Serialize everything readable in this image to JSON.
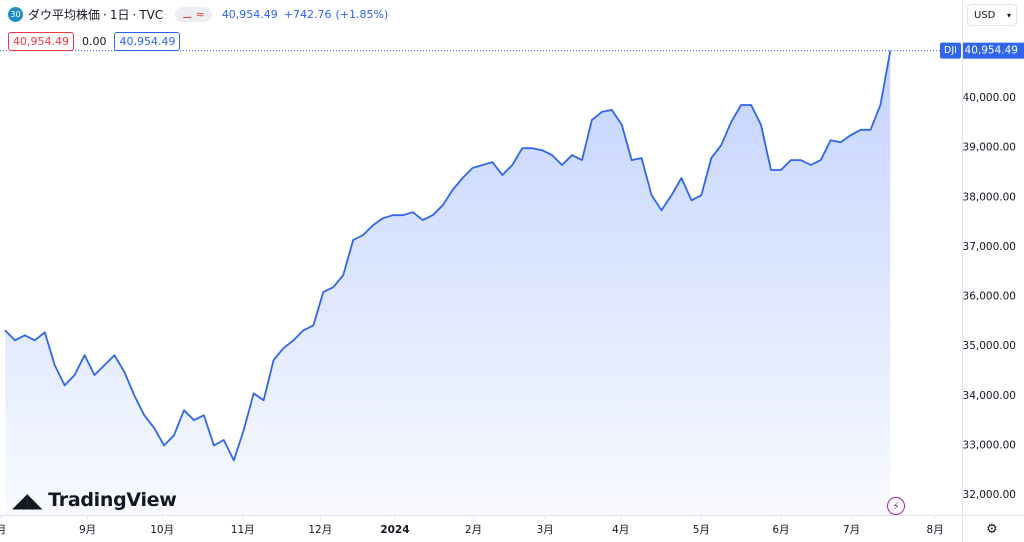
{
  "header": {
    "symbol_badge": "30",
    "name": "ダウ平均株価",
    "interval": "1日",
    "source": "TVC",
    "price": "40,954.49",
    "change": "+742.76",
    "change_pct": "(+1.85%)",
    "sell": "40,954.49",
    "spread": "0.00",
    "buy": "40,954.49",
    "currency": "USD",
    "logo": "TradingView"
  },
  "chart_data": {
    "type": "area",
    "color": "#2f66ea",
    "values": [
      35320,
      35120,
      35220,
      35120,
      35280,
      34620,
      34210,
      34420,
      34820,
      34420,
      34620,
      34820,
      34480,
      34010,
      33610,
      33350,
      33000,
      33210,
      33710,
      33510,
      33610,
      33000,
      33110,
      32700,
      33310,
      34050,
      33910,
      34720,
      34960,
      35120,
      35320,
      35420,
      36090,
      36190,
      36430,
      37140,
      37240,
      37440,
      37580,
      37640,
      37640,
      37700,
      37540,
      37640,
      37840,
      38150,
      38390,
      38590,
      38650,
      38710,
      38450,
      38650,
      38990,
      38990,
      38950,
      38850,
      38650,
      38850,
      38750,
      39560,
      39720,
      39760,
      39460,
      38750,
      38790,
      38040,
      37740,
      38040,
      38390,
      37940,
      38040,
      38790,
      39050,
      39520,
      39860,
      39860,
      39460,
      38550,
      38550,
      38750,
      38750,
      38650,
      38750,
      39150,
      39110,
      39250,
      39360,
      39360,
      39860,
      40954.49
    ],
    "symbol_label": "DJI",
    "last_price_label": "40,954.49",
    "xlim": [
      -0.5,
      95.7
    ],
    "xticks": [
      {
        "value": -0.4,
        "label": "月"
      },
      {
        "value": 8.3,
        "label": "9月"
      },
      {
        "value": 15.8,
        "label": "10月"
      },
      {
        "value": 23.9,
        "label": "11月"
      },
      {
        "value": 31.7,
        "label": "12月"
      },
      {
        "value": 39.2,
        "label": "2024"
      },
      {
        "value": 47.1,
        "label": "2月"
      },
      {
        "value": 54.3,
        "label": "3月"
      },
      {
        "value": 61.9,
        "label": "4月"
      },
      {
        "value": 70,
        "label": "5月"
      },
      {
        "value": 78,
        "label": "6月"
      },
      {
        "value": 85.1,
        "label": "7月"
      },
      {
        "value": 93.5,
        "label": "8月"
      }
    ],
    "ylim": [
      31600,
      41975
    ],
    "yticks": [
      {
        "value": 32000,
        "label": "32,000.00"
      },
      {
        "value": 33000,
        "label": "33,000.00"
      },
      {
        "value": 34000,
        "label": "34,000.00"
      },
      {
        "value": 35000,
        "label": "35,000.00"
      },
      {
        "value": 36000,
        "label": "36,000.00"
      },
      {
        "value": 37000,
        "label": "37,000.00"
      },
      {
        "value": 38000,
        "label": "38,000.00"
      },
      {
        "value": 39000,
        "label": "39,000.00"
      },
      {
        "value": 40000,
        "label": "40,000.00"
      }
    ],
    "grid": false
  }
}
